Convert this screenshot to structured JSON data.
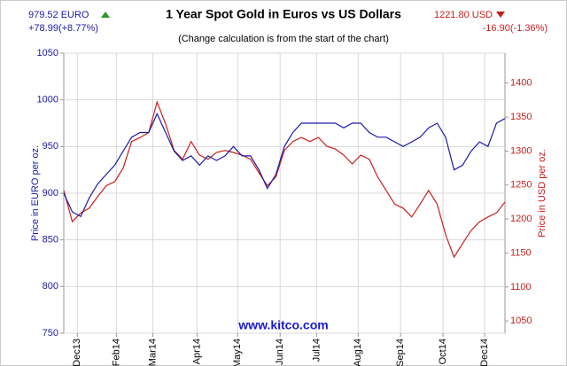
{
  "chart_data": {
    "type": "line",
    "title": "1 Year Spot Gold in Euros vs US Dollars",
    "subtitle": "(Change calculation is from the start of the chart)",
    "watermark": "www.kitco.com",
    "left_price": "979.52 EURO",
    "left_change": "+78.99(+8.77%)",
    "right_price": "1221.80 USD",
    "right_change": "-16.90(-1.36%)",
    "y_label": "Price in EURO per oz.",
    "y2_label": "Price in USD per oz.",
    "x": [
      0,
      1,
      2,
      3,
      4,
      5,
      6,
      7,
      8,
      9,
      10,
      11,
      12,
      13,
      14,
      15,
      16,
      17,
      18,
      19,
      20,
      21,
      22,
      23,
      24,
      25,
      26,
      27,
      28,
      29,
      30,
      31,
      32,
      33,
      34,
      35,
      36,
      37,
      38,
      39,
      40,
      41,
      42,
      43,
      44,
      45,
      46,
      47,
      48,
      49,
      50,
      51,
      52
    ],
    "xlim": [
      0,
      52
    ],
    "xticks": [
      {
        "value": 1.6,
        "label": "Dec13"
      },
      {
        "value": 6.2,
        "label": "Feb14"
      },
      {
        "value": 10.5,
        "label": "Mar14"
      },
      {
        "value": 15.7,
        "label": "Apr14"
      },
      {
        "value": 20.5,
        "label": "May14"
      },
      {
        "value": 25.5,
        "label": "Jun14"
      },
      {
        "value": 29.8,
        "label": "Jul14"
      },
      {
        "value": 34.7,
        "label": "Aug14"
      },
      {
        "value": 39.7,
        "label": "Sep14"
      },
      {
        "value": 44.7,
        "label": "Oct14"
      },
      {
        "value": 49.6,
        "label": "Dec14"
      }
    ],
    "ylim": [
      750,
      1050
    ],
    "yticks": [
      750,
      800,
      850,
      900,
      950,
      1000,
      1050
    ],
    "y2lim": [
      1032,
      1444
    ],
    "y2ticks": [
      1050,
      1100,
      1150,
      1200,
      1250,
      1300,
      1350,
      1400
    ],
    "grid": true,
    "series": [
      {
        "name": "EURO",
        "color": "#1a1aa6",
        "values": [
          900,
          880,
          875,
          895,
          910,
          920,
          930,
          945,
          960,
          965,
          965,
          985,
          965,
          945,
          935,
          940,
          930,
          940,
          935,
          940,
          950,
          940,
          940,
          925,
          905,
          920,
          950,
          965,
          975,
          975,
          975,
          975,
          975,
          970,
          975,
          975,
          965,
          960,
          960,
          955,
          950,
          955,
          960,
          970,
          975,
          960,
          925,
          930,
          945,
          955,
          950,
          975,
          980
        ]
      },
      {
        "name": "USD",
        "color": "#c8201e",
        "axis": "y2",
        "values": [
          1242,
          1196,
          1209,
          1216,
          1233,
          1249,
          1255,
          1275,
          1314,
          1320,
          1327,
          1372,
          1340,
          1301,
          1288,
          1314,
          1294,
          1288,
          1298,
          1301,
          1298,
          1294,
          1288,
          1268,
          1249,
          1262,
          1301,
          1314,
          1320,
          1314,
          1320,
          1307,
          1303,
          1294,
          1281,
          1294,
          1288,
          1262,
          1242,
          1222,
          1216,
          1203,
          1222,
          1242,
          1222,
          1177,
          1144,
          1164,
          1183,
          1196,
          1203,
          1209,
          1225
        ]
      }
    ]
  }
}
